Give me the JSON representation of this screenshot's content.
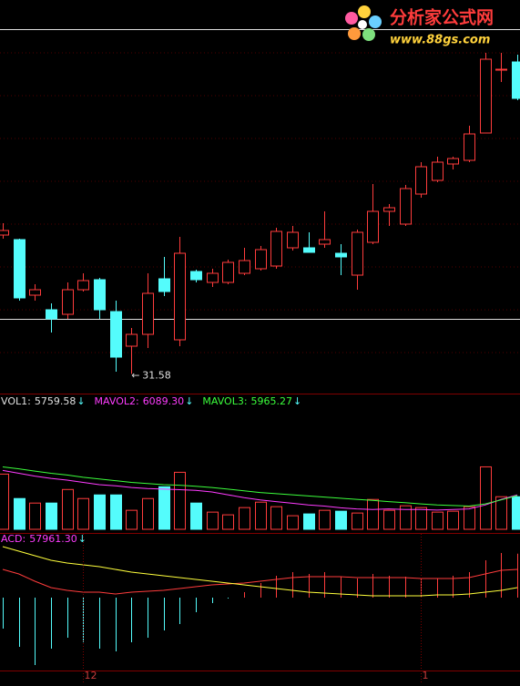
{
  "chart_data": [
    {
      "type": "candlestick",
      "up_color": "#ff3c3c",
      "down_color": "#54fcfc",
      "ylim": [
        30.5,
        52.1
      ],
      "open": [
        39.2,
        38.95,
        35.9,
        35.1,
        34.85,
        36.2,
        36.75,
        35.0,
        33.1,
        33.75,
        36.8,
        33.45,
        37.2,
        36.6,
        36.6,
        37.1,
        37.35,
        37.5,
        38.5,
        38.5,
        38.7,
        38.2,
        37.0,
        38.8,
        40.5,
        39.8,
        41.45,
        42.2,
        43.1,
        43.3,
        44.8,
        48.25,
        48.7
      ],
      "high": [
        39.85,
        39.0,
        36.5,
        35.45,
        36.6,
        37.1,
        36.85,
        35.6,
        34.1,
        37.1,
        38.0,
        39.1,
        37.3,
        37.35,
        37.85,
        38.5,
        38.6,
        39.6,
        39.7,
        39.35,
        40.5,
        38.7,
        39.5,
        42.0,
        40.9,
        41.95,
        43.2,
        43.5,
        43.5,
        45.2,
        49.2,
        49.2,
        49.1
      ],
      "low": [
        39.0,
        35.6,
        35.6,
        33.85,
        34.6,
        36.1,
        34.6,
        31.7,
        31.58,
        33.0,
        35.85,
        33.1,
        36.6,
        36.35,
        36.5,
        37.0,
        37.25,
        37.35,
        38.35,
        38.25,
        38.5,
        37.0,
        36.2,
        38.7,
        39.7,
        39.7,
        41.25,
        42.1,
        42.8,
        43.2,
        44.8,
        47.6,
        46.6
      ],
      "close": [
        39.45,
        35.75,
        36.2,
        34.6,
        36.2,
        36.7,
        35.1,
        32.5,
        33.75,
        36.0,
        36.1,
        38.2,
        36.75,
        37.1,
        37.7,
        37.8,
        38.4,
        39.4,
        39.35,
        38.25,
        38.95,
        38.0,
        39.35,
        40.5,
        40.7,
        41.75,
        42.95,
        43.2,
        43.4,
        44.75,
        48.85,
        48.3,
        46.7
      ],
      "reference_lines": [
        50.5,
        34.6
      ],
      "reference_color": "#e0e0e0"
    },
    {
      "type": "volume",
      "ylim": [
        0,
        24000
      ],
      "arrow": "↓",
      "series": [
        {
          "name": "VOL1:",
          "color": "#e0e0e0",
          "readout": 5759.58,
          "values": [
            9760,
            5440,
            4640,
            4640,
            7040,
            5440,
            6080,
            6080,
            3360,
            5440,
            7520,
            10080,
            4640,
            3040,
            2560,
            3840,
            4800,
            4000,
            2400,
            2720,
            3360,
            3200,
            2880,
            5280,
            3360,
            4160,
            3840,
            3040,
            3200,
            4000,
            11040,
            5760,
            5759.58
          ]
        },
        {
          "name": "MAVOL2:",
          "color": "#ff3cff",
          "readout": {
            "value": 6089.3,
            "label": "6089.30"
          },
          "values": [
            10400,
            9900,
            9400,
            9000,
            8700,
            8300,
            7900,
            7700,
            7400,
            7200,
            7100,
            7000,
            6900,
            6600,
            6100,
            5600,
            5200,
            4900,
            4600,
            4300,
            4100,
            3800,
            3600,
            3500,
            3600,
            3500,
            3500,
            3400,
            3500,
            3600,
            4300,
            5300,
            6089.3
          ]
        },
        {
          "name": "MAVOL3:",
          "color": "#3cff3c",
          "readout": 5965.27,
          "values": [
            11040,
            10700,
            10300,
            9900,
            9600,
            9200,
            8900,
            8600,
            8300,
            8100,
            7900,
            7800,
            7600,
            7400,
            7100,
            6800,
            6500,
            6300,
            6100,
            5900,
            5700,
            5500,
            5300,
            5100,
            4900,
            4700,
            4500,
            4300,
            4200,
            4100,
            4500,
            5200,
            5965.27
          ]
        }
      ]
    },
    {
      "type": "macd",
      "ylim": [
        -96000,
        84000
      ],
      "arrow": "↓",
      "categories": [
        null,
        null,
        null,
        null,
        null,
        "12",
        null,
        null,
        null,
        null,
        null,
        null,
        null,
        null,
        null,
        null,
        null,
        null,
        null,
        null,
        null,
        null,
        null,
        null,
        null,
        null,
        "1",
        null,
        null,
        null,
        null,
        null,
        null
      ],
      "series": [
        {
          "name": "ACD:",
          "color": "#ff3cff",
          "up_color": "#ff3c3c",
          "down_color": "#54fcfc",
          "readout": {
            "value": 57961.3,
            "label": "57961.30"
          },
          "values": [
            -40800,
            -64800,
            -88800,
            -67200,
            -52800,
            -58800,
            -67200,
            -70800,
            -58800,
            -52800,
            -43200,
            -34800,
            -19200,
            -7200,
            -1200,
            7200,
            19200,
            28800,
            33600,
            31200,
            33600,
            27600,
            25200,
            31200,
            28800,
            27600,
            26400,
            25200,
            28800,
            33600,
            49200,
            58800,
            57961.3
          ]
        }
      ],
      "lines": [
        {
          "color": "#ff3c3c",
          "values": [
            37200,
            31200,
            21600,
            13200,
            9600,
            7200,
            7200,
            4800,
            7200,
            8400,
            9600,
            12000,
            14400,
            16800,
            18000,
            19200,
            21600,
            24000,
            26400,
            27600,
            27600,
            27600,
            26400,
            26400,
            26400,
            26400,
            25200,
            25200,
            25200,
            26400,
            31200,
            36000,
            37200
          ]
        },
        {
          "color": "#ffff3c",
          "values": [
            67200,
            61200,
            55200,
            49200,
            45600,
            43200,
            40800,
            37200,
            33600,
            31200,
            28800,
            26400,
            24000,
            21600,
            19200,
            16800,
            14400,
            12000,
            9600,
            7200,
            6000,
            4800,
            3600,
            2400,
            2400,
            2400,
            2400,
            3600,
            3600,
            4800,
            7200,
            9600,
            13200
          ]
        }
      ]
    }
  ],
  "watermark": {
    "title": "分析家公式网",
    "url": "www.88gs.com"
  }
}
